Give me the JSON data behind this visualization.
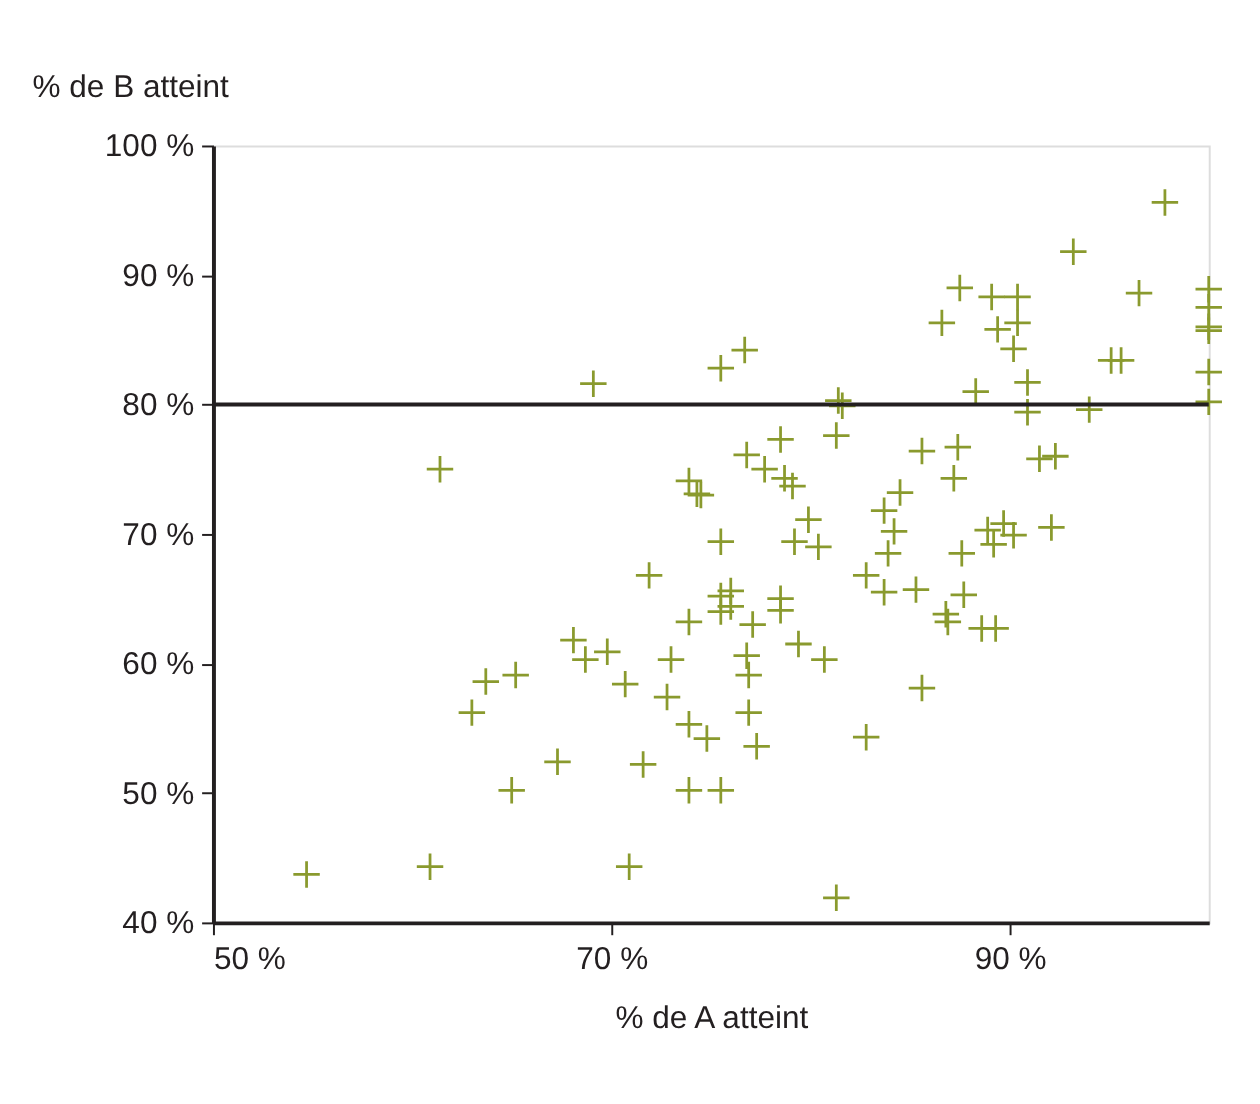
{
  "chart_data": {
    "type": "scatter",
    "xlabel": "% de A atteint",
    "ylabel": "% de B atteint",
    "xlim": [
      50,
      100
    ],
    "ylim": [
      40,
      100
    ],
    "xticks": [
      {
        "value": 50,
        "label": "50 %"
      },
      {
        "value": 70,
        "label": "70 %"
      },
      {
        "value": 90,
        "label": "90 %"
      }
    ],
    "yticks": [
      {
        "value": 40,
        "label": "40 %"
      },
      {
        "value": 50,
        "label": "50 %"
      },
      {
        "value": 60,
        "label": "60 %"
      },
      {
        "value": 70,
        "label": "70 %"
      },
      {
        "value": 80,
        "label": "80 %"
      },
      {
        "value": 90,
        "label": "90 %"
      },
      {
        "value": 100,
        "label": "100 %"
      }
    ],
    "grid": false,
    "marker": "cross",
    "ref_lines": [
      {
        "axis": "y",
        "value": 80,
        "label": null,
        "color": "#231f20",
        "line_style": "solid"
      }
    ],
    "series": [
      {
        "color": "#8a9a2e",
        "x": [
          54.7,
          60.9,
          61.4,
          69.1,
          75.5,
          70.9,
          81.3,
          73.9,
          74.3,
          74.5,
          75.5,
          71.9,
          73.9,
          68.1,
          68.7,
          69.8,
          73.0,
          63.7,
          65.2,
          70.7,
          63.0,
          72.8,
          73.9,
          74.8,
          67.3,
          71.6,
          65.0,
          73.9,
          75.5,
          75.5,
          75.5,
          86.6,
          89.4,
          90.4,
          90.2,
          95.1,
          95.6,
          100,
          100,
          76.7,
          88.3,
          90.9,
          90.9,
          94.0,
          81.6,
          81.4,
          81.3,
          78.5,
          76.8,
          77.7,
          79.1,
          78.7,
          85.6,
          87.4,
          87.2,
          91.5,
          92.3,
          84.5,
          83.7,
          84.2,
          83.9,
          82.8,
          83.7,
          85.3,
          79.9,
          80.4,
          79.2,
          87.6,
          88.9,
          89.7,
          89.2,
          90.2,
          92.1,
          87.7,
          86.8,
          86.9,
          88.6,
          89.3,
          76.0,
          76.0,
          77.1,
          78.5,
          78.5,
          79.4,
          80.7,
          76.8,
          76.9,
          76.9,
          77.3,
          85.6,
          82.8,
          97.8,
          93.2,
          87.5,
          89.1,
          90.4,
          96.5,
          100,
          100,
          100,
          100
        ],
        "values": [
          43.7,
          44.3,
          75.0,
          81.6,
          82.8,
          44.3,
          41.9,
          74.1,
          73.1,
          73.0,
          69.4,
          66.8,
          63.2,
          61.8,
          60.3,
          60.9,
          60.3,
          58.6,
          59.1,
          58.4,
          56.2,
          57.4,
          55.3,
          54.2,
          52.4,
          52.2,
          50.2,
          50.2,
          50.2,
          65.2,
          64.0,
          86.3,
          85.8,
          86.3,
          84.3,
          83.4,
          83.4,
          86.0,
          82.5,
          84.2,
          81.0,
          81.7,
          79.4,
          79.6,
          79.9,
          80.3,
          77.6,
          77.3,
          76.1,
          75.0,
          73.7,
          74.3,
          76.4,
          76.7,
          74.3,
          75.8,
          76.0,
          73.2,
          71.8,
          70.2,
          68.5,
          66.8,
          65.5,
          65.7,
          71.1,
          69.0,
          69.4,
          68.5,
          70.3,
          70.8,
          69.2,
          69.9,
          70.5,
          65.3,
          63.8,
          63.2,
          62.7,
          62.7,
          65.6,
          64.4,
          63.0,
          65.0,
          64.1,
          61.5,
          60.3,
          60.6,
          59.1,
          56.2,
          53.6,
          58.1,
          54.3,
          95.6,
          91.8,
          89.0,
          88.3,
          88.3,
          88.6,
          88.9,
          87.5,
          85.7,
          80.2
        ]
      }
    ]
  }
}
